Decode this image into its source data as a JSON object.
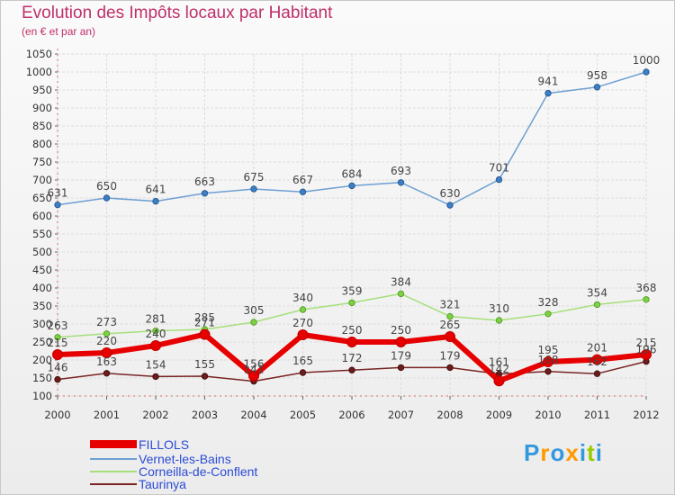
{
  "header": {
    "title": "Evolution des Impôts locaux par Habitant",
    "subtitle": "(en € et par an)"
  },
  "brand": {
    "letters": [
      "P",
      "r",
      "o",
      "x",
      "i",
      "t",
      "i"
    ]
  },
  "colors": {
    "FILLOLS": "#e60000",
    "Vernet-les-Bains": "#6e9fd3",
    "Corneilla-de-Conflent": "#a6df7a",
    "Taurinya": "#7a2424",
    "brand": [
      "#3399dd",
      "#ff9900",
      "#3399dd",
      "#ff9900",
      "#3399dd",
      "#99cc00",
      "#3399dd"
    ]
  },
  "chart_data": {
    "type": "line",
    "title": "Evolution des Impôts locaux par Habitant",
    "subtitle": "(en € et par an)",
    "xlabel": "",
    "ylabel": "",
    "ylim": [
      100,
      1050
    ],
    "yticks": [
      100,
      150,
      200,
      250,
      300,
      350,
      400,
      450,
      500,
      550,
      600,
      650,
      700,
      750,
      800,
      850,
      900,
      950,
      1000,
      1050
    ],
    "grid": true,
    "legend": "bottom-left",
    "categories": [
      "2000",
      "2001",
      "2002",
      "2003",
      "2004",
      "2005",
      "2006",
      "2007",
      "2008",
      "2009",
      "2010",
      "2011",
      "2012"
    ],
    "series": [
      {
        "name": "FILLOLS",
        "values": [
          215,
          220,
          240,
          271,
          156,
          270,
          250,
          250,
          265,
          142,
          195,
          201,
          215
        ],
        "labels": [
          "215",
          "220",
          "240",
          "271",
          "156",
          "270",
          "250",
          "250",
          "265",
          "142",
          "195",
          "201",
          "215"
        ]
      },
      {
        "name": "Vernet-les-Bains",
        "values": [
          631,
          650,
          641,
          663,
          675,
          667,
          684,
          693,
          630,
          701,
          941,
          958,
          1000
        ],
        "labels": [
          "631",
          "650",
          "641",
          "663",
          "675",
          "667",
          "684",
          "693",
          "630",
          "701",
          "941",
          "958",
          "1000"
        ]
      },
      {
        "name": "Corneilla-de-Conflent",
        "values": [
          263,
          273,
          281,
          285,
          305,
          340,
          359,
          384,
          321,
          310,
          328,
          354,
          368
        ],
        "labels": [
          "263",
          "273",
          "281",
          "285",
          "305",
          "340",
          "359",
          "384",
          "321",
          "310",
          "328",
          "354",
          "368"
        ]
      },
      {
        "name": "Taurinya",
        "values": [
          146,
          163,
          154,
          155,
          141,
          165,
          172,
          179,
          179,
          161,
          168,
          162,
          196
        ],
        "labels": [
          "146",
          "163",
          "154",
          "155",
          "141",
          "165",
          "172",
          "179",
          "179",
          "161",
          "168",
          "162",
          "196"
        ]
      }
    ]
  }
}
